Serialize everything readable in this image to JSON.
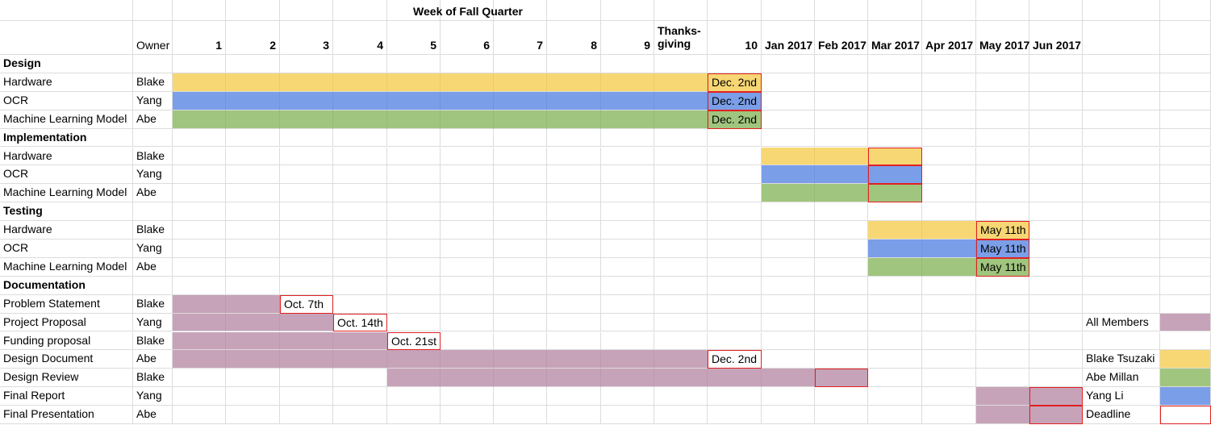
{
  "sheet": {
    "title": "Week of Fall Quarter",
    "owner_header": "Owner",
    "columns": [
      "1",
      "2",
      "3",
      "4",
      "5",
      "6",
      "7",
      "8",
      "9",
      "Thanks-\ngiving",
      "10",
      "Jan 2017",
      "Feb 2017",
      "Mar 2017",
      "Apr 2017",
      "May 2017",
      "Jun 2017"
    ],
    "rows": [
      {
        "label": "Design",
        "owner": "",
        "section": true
      },
      {
        "label": "Hardware",
        "owner": "Blake"
      },
      {
        "label": "OCR",
        "owner": "Yang"
      },
      {
        "label": "Machine Learning Model",
        "owner": "Abe"
      },
      {
        "label": "Implementation",
        "owner": "",
        "section": true
      },
      {
        "label": "Hardware",
        "owner": "Blake"
      },
      {
        "label": "OCR",
        "owner": "Yang"
      },
      {
        "label": "Machine Learning Model",
        "owner": "Abe"
      },
      {
        "label": "Testing",
        "owner": "",
        "section": true
      },
      {
        "label": "Hardware",
        "owner": "Blake"
      },
      {
        "label": "OCR",
        "owner": "Yang"
      },
      {
        "label": "Machine Learning Model",
        "owner": "Abe"
      },
      {
        "label": "Documentation",
        "owner": "",
        "section": true
      },
      {
        "label": "Problem Statement",
        "owner": "Blake"
      },
      {
        "label": "Project Proposal",
        "owner": "Yang"
      },
      {
        "label": "Funding proposal",
        "owner": "Blake"
      },
      {
        "label": "Design Document",
        "owner": "Abe"
      },
      {
        "label": "Design Review",
        "owner": "Blake"
      },
      {
        "label": "Final Report",
        "owner": "Yang"
      },
      {
        "label": "Final Presentation",
        "owner": "Abe"
      }
    ],
    "bars": [
      {
        "row": 1,
        "start": 0,
        "end": 10,
        "color": "yellow"
      },
      {
        "row": 2,
        "start": 0,
        "end": 10,
        "color": "blue"
      },
      {
        "row": 3,
        "start": 0,
        "end": 10,
        "color": "green"
      },
      {
        "row": 5,
        "start": 11,
        "end": 13,
        "color": "yellow"
      },
      {
        "row": 6,
        "start": 11,
        "end": 13,
        "color": "blue"
      },
      {
        "row": 7,
        "start": 11,
        "end": 13,
        "color": "green"
      },
      {
        "row": 9,
        "start": 13,
        "end": 15,
        "color": "yellow"
      },
      {
        "row": 10,
        "start": 13,
        "end": 15,
        "color": "blue"
      },
      {
        "row": 11,
        "start": 13,
        "end": 15,
        "color": "green"
      },
      {
        "row": 13,
        "start": 0,
        "end": 1,
        "color": "purple"
      },
      {
        "row": 14,
        "start": 0,
        "end": 2,
        "color": "purple"
      },
      {
        "row": 15,
        "start": 0,
        "end": 3,
        "color": "purple"
      },
      {
        "row": 16,
        "start": 0,
        "end": 9,
        "color": "purple"
      },
      {
        "row": 17,
        "start": 4,
        "end": 12,
        "color": "purple"
      },
      {
        "row": 18,
        "start": 15,
        "end": 16,
        "color": "purple"
      },
      {
        "row": 19,
        "start": 15,
        "end": 16,
        "color": "purple"
      }
    ],
    "deadlines": [
      {
        "row": 1,
        "col": 10,
        "text": "Dec. 2nd"
      },
      {
        "row": 2,
        "col": 10,
        "text": "Dec. 2nd"
      },
      {
        "row": 3,
        "col": 10,
        "text": "Dec. 2nd"
      },
      {
        "row": 5,
        "col": 13,
        "text": ""
      },
      {
        "row": 6,
        "col": 13,
        "text": ""
      },
      {
        "row": 7,
        "col": 13,
        "text": ""
      },
      {
        "row": 9,
        "col": 15,
        "text": "May 11th"
      },
      {
        "row": 10,
        "col": 15,
        "text": "May 11th"
      },
      {
        "row": 11,
        "col": 15,
        "text": "May 11th"
      },
      {
        "row": 13,
        "col": 2,
        "text": "Oct. 7th"
      },
      {
        "row": 14,
        "col": 3,
        "text": "Oct. 14th"
      },
      {
        "row": 15,
        "col": 4,
        "text": "Oct. 21st"
      },
      {
        "row": 16,
        "col": 10,
        "text": "Dec. 2nd"
      },
      {
        "row": 17,
        "col": 12,
        "text": ""
      },
      {
        "row": 18,
        "col": 16,
        "text": ""
      },
      {
        "row": 19,
        "col": 16,
        "text": ""
      }
    ],
    "legend": [
      {
        "row": 14,
        "label": "All Members",
        "color": "purple"
      },
      {
        "row": 16,
        "label": "Blake Tsuzaki",
        "color": "yellow"
      },
      {
        "row": 17,
        "label": "Abe Millan",
        "color": "green"
      },
      {
        "row": 18,
        "label": "Yang Li",
        "color": "blue"
      },
      {
        "row": 19,
        "label": "Deadline",
        "color": "deadline"
      }
    ],
    "colors": {
      "yellow": "#f7d774",
      "blue": "#7b9ee8",
      "green": "#a0c57e",
      "purple": "#c7a3b9",
      "deadline": "#e02020"
    }
  }
}
